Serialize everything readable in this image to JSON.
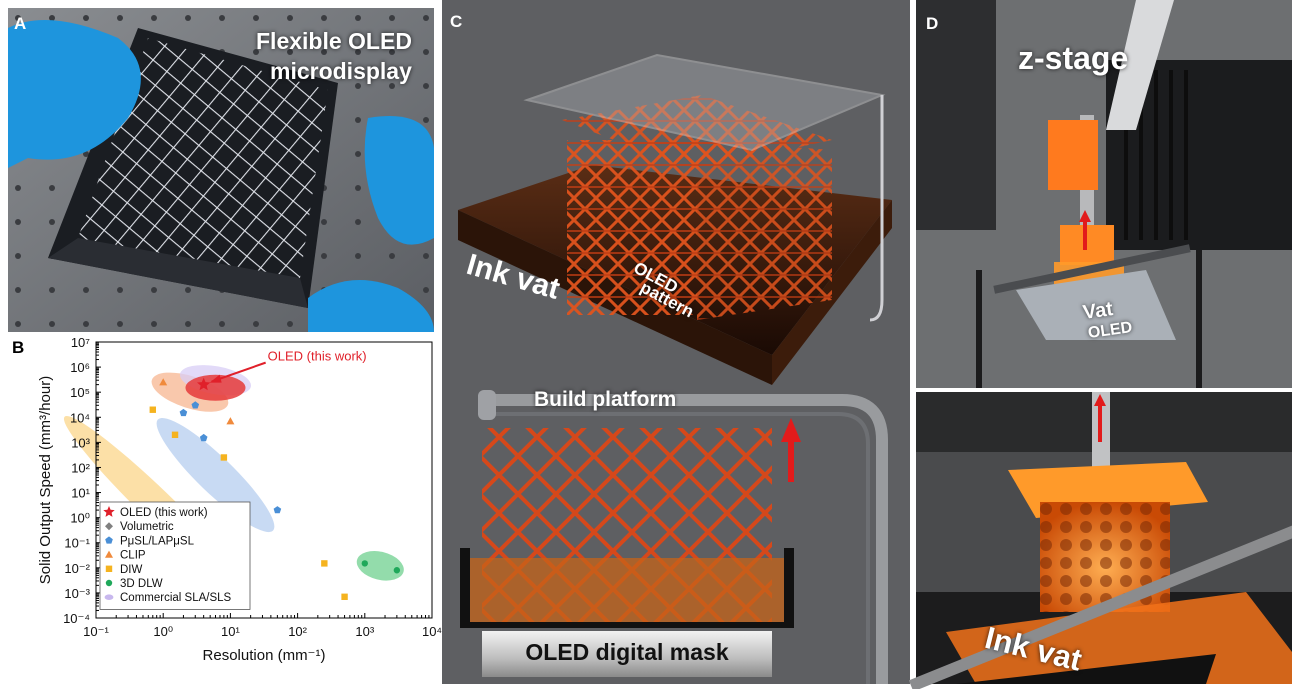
{
  "figure": {
    "panels": {
      "a": {
        "label": "A",
        "caption_line1": "Flexible OLED",
        "caption_line2": "microdisplay"
      },
      "b": {
        "label": "B"
      },
      "c": {
        "label": "C",
        "ink_vat": "Ink vat",
        "oled_pattern_line1": "OLED",
        "oled_pattern_line2": "pattern",
        "build_platform": "Build platform",
        "oled_mask": "OLED digital mask"
      },
      "d": {
        "label": "D",
        "z_stage": "z-stage",
        "vat": "Vat",
        "oled": "OLED",
        "ink_vat": "Ink vat"
      }
    }
  },
  "chart_data": {
    "type": "scatter",
    "xlabel": "Resolution (mm⁻¹)",
    "ylabel": "Solid Output Speed (mm³/hour)",
    "xscale": "log",
    "yscale": "log",
    "xlim": [
      0.1,
      10000
    ],
    "ylim": [
      0.0001,
      10000000
    ],
    "x_ticks": [
      "10⁻¹",
      "10⁰",
      "10¹",
      "10²",
      "10³",
      "10⁴"
    ],
    "y_ticks": [
      "10⁻⁴",
      "10⁻³",
      "10⁻²",
      "10⁻¹",
      "10⁰",
      "10¹",
      "10²",
      "10³",
      "10⁴",
      "10⁵",
      "10⁶",
      "10⁷"
    ],
    "annotation": "OLED (this work)",
    "legend_position": "bottom-left",
    "series": [
      {
        "name": "OLED (this work)",
        "marker": "star",
        "color": "#e0202a",
        "points": [
          [
            4,
            200000
          ]
        ]
      },
      {
        "name": "Volumetric",
        "marker": "diamond",
        "color": "#808080",
        "points": []
      },
      {
        "name": "PμSL/LAPμSL",
        "marker": "pentagon",
        "color": "#4a8fd6",
        "points": [
          [
            2,
            15000
          ],
          [
            3,
            30000
          ],
          [
            4,
            1500
          ],
          [
            50,
            2
          ]
        ]
      },
      {
        "name": "CLIP",
        "marker": "triangle",
        "color": "#f08a3c",
        "points": [
          [
            1,
            250000
          ],
          [
            10,
            7000
          ]
        ]
      },
      {
        "name": "DIW",
        "marker": "square",
        "color": "#f5b31f",
        "points": [
          [
            0.7,
            20000
          ],
          [
            1.5,
            2000
          ],
          [
            8,
            250
          ],
          [
            250,
            0.015
          ],
          [
            500,
            0.0007
          ]
        ]
      },
      {
        "name": "3D DLW",
        "marker": "circle",
        "color": "#1fa85a",
        "points": [
          [
            1000,
            0.015
          ],
          [
            3000,
            0.008
          ]
        ]
      },
      {
        "name": "Commercial SLA/SLS",
        "marker": "ellipse",
        "color": "#c8b8ee",
        "points": []
      }
    ],
    "regions": [
      {
        "series": "OLED (this work)",
        "color": "#e53a3a"
      },
      {
        "series": "Commercial SLA/SLS",
        "color": "#d8cdf5"
      },
      {
        "series": "CLIP",
        "color": "#f7b189"
      },
      {
        "series": "PμSL/LAPμSL",
        "color": "#b5cdef"
      },
      {
        "series": "DIW",
        "color": "#fbd68a"
      },
      {
        "series": "3D DLW",
        "color": "#6fd08f"
      }
    ]
  }
}
